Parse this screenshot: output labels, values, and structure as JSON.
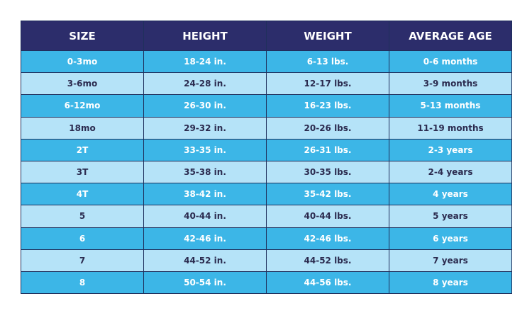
{
  "table": {
    "headers": [
      "SIZE",
      "HEIGHT",
      "WEIGHT",
      "AVERAGE AGE"
    ],
    "rows": [
      [
        "0-3mo",
        "18-24 in.",
        "6-13 lbs.",
        "0-6 months"
      ],
      [
        "3-6mo",
        "24-28 in.",
        "12-17 lbs.",
        "3-9 months"
      ],
      [
        "6-12mo",
        "26-30 in.",
        "16-23 lbs.",
        "5-13 months"
      ],
      [
        "18mo",
        "29-32 in.",
        "20-26 lbs.",
        "11-19 months"
      ],
      [
        "2T",
        "33-35 in.",
        "26-31 lbs.",
        "2-3 years"
      ],
      [
        "3T",
        "35-38 in.",
        "30-35 lbs.",
        "2-4 years"
      ],
      [
        "4T",
        "38-42 in.",
        "35-42 lbs.",
        "4 years"
      ],
      [
        "5",
        "40-44 in.",
        "40-44 lbs.",
        "5 years"
      ],
      [
        "6",
        "42-46 in.",
        "42-46 lbs.",
        "6 years"
      ],
      [
        "7",
        "44-52 in.",
        "44-52 lbs.",
        "7 years"
      ],
      [
        "8",
        "50-54 in.",
        "44-56 lbs.",
        "8 years"
      ]
    ]
  }
}
